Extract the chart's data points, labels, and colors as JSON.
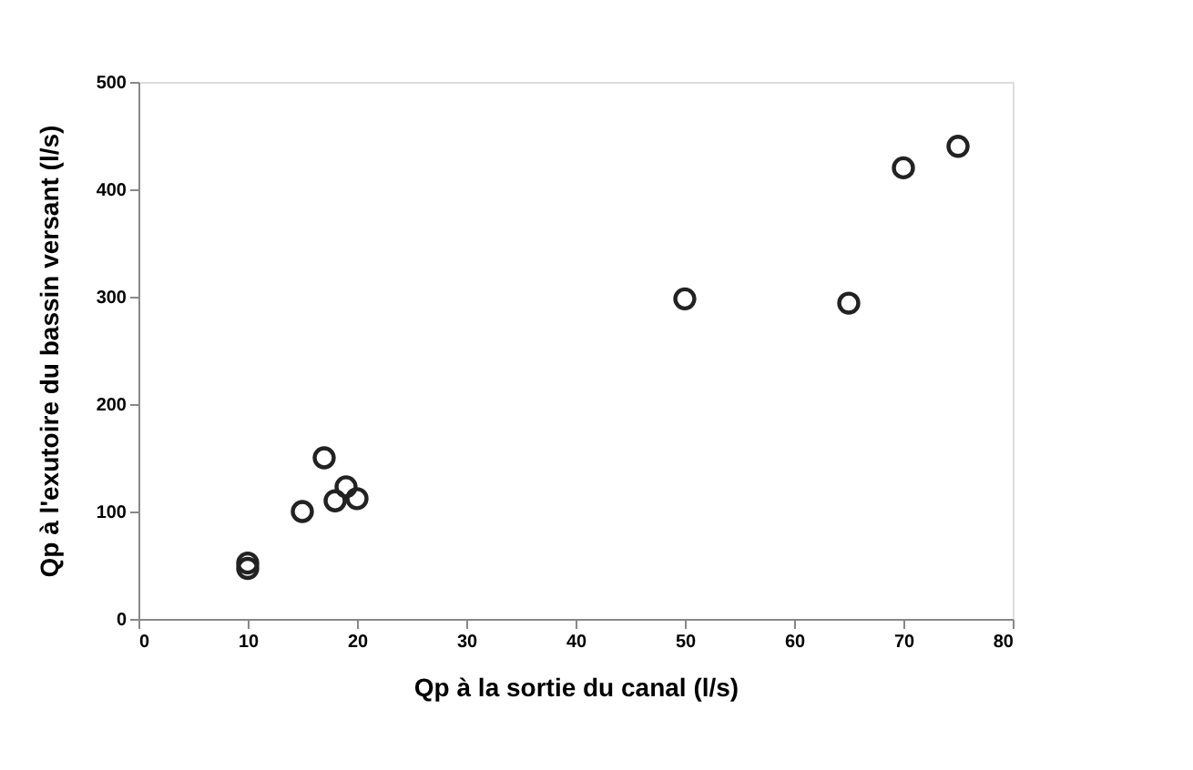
{
  "chart_data": {
    "type": "scatter",
    "xlabel": "Qp à la sortie du canal (l/s)",
    "ylabel": "Qp à l'exutoire du bassin versant (l/s)",
    "x": [
      10,
      10,
      15,
      17,
      18,
      19,
      20,
      50,
      65,
      70,
      75
    ],
    "series": [
      {
        "color": "#222222",
        "values": [
          52,
          47,
          100,
          150,
          110,
          123,
          112,
          298,
          294,
          420,
          440
        ]
      }
    ],
    "xlim": [
      0,
      80
    ],
    "xticks": [
      0,
      10,
      20,
      30,
      40,
      50,
      60,
      70,
      80
    ],
    "ylim": [
      0,
      500
    ],
    "yticks": [
      0,
      100,
      200,
      300,
      400,
      500
    ],
    "marker": "circle",
    "grid": false,
    "legend": false
  }
}
